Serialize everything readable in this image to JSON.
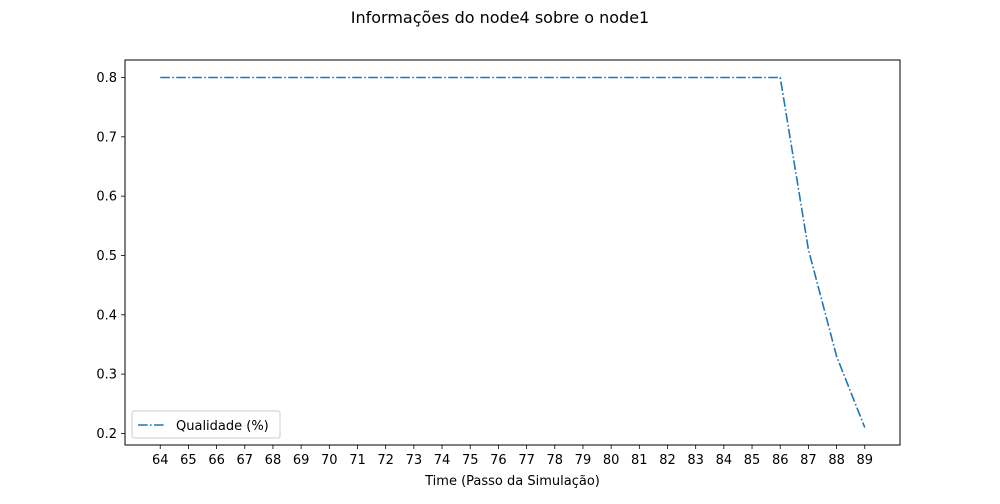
{
  "chart_data": {
    "type": "line",
    "title": "Informações do node4 sobre o node1",
    "xlabel": "Time (Passo da Simulação)",
    "ylabel": "",
    "x": [
      64,
      65,
      66,
      67,
      68,
      69,
      70,
      71,
      72,
      73,
      74,
      75,
      76,
      77,
      78,
      79,
      80,
      81,
      82,
      83,
      84,
      85,
      86,
      87,
      88,
      89
    ],
    "series": [
      {
        "name": "Qualidade (%)",
        "values": [
          0.8,
          0.8,
          0.8,
          0.8,
          0.8,
          0.8,
          0.8,
          0.8,
          0.8,
          0.8,
          0.8,
          0.8,
          0.8,
          0.8,
          0.8,
          0.8,
          0.8,
          0.8,
          0.8,
          0.8,
          0.8,
          0.8,
          0.8,
          0.51,
          0.33,
          0.21
        ],
        "color": "#1f77b4",
        "linestyle": "dashdot"
      }
    ],
    "xticks": [
      "64",
      "65",
      "66",
      "67",
      "68",
      "69",
      "70",
      "71",
      "72",
      "73",
      "74",
      "75",
      "76",
      "77",
      "78",
      "79",
      "80",
      "81",
      "82",
      "83",
      "84",
      "85",
      "86",
      "87",
      "88",
      "89"
    ],
    "yticks": [
      "0.2",
      "0.3",
      "0.4",
      "0.5",
      "0.6",
      "0.7",
      "0.8"
    ],
    "xlim": [
      62.75,
      90.25
    ],
    "ylim": [
      0.1805,
      0.8295
    ],
    "grid": false,
    "legend_position": "lower-left"
  }
}
